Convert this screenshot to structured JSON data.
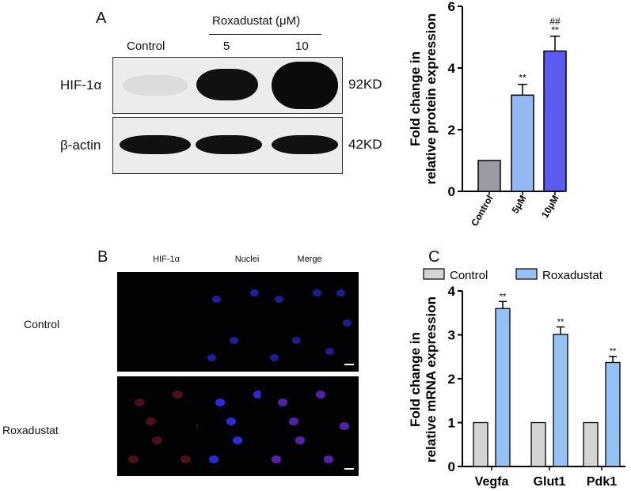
{
  "panelA": {
    "letter": "A",
    "treatment_header": "Roxadustat (μM)",
    "lanes": [
      "Control",
      "5",
      "10"
    ],
    "rows": [
      {
        "protein": "HIF-1α",
        "size": "92KD",
        "intensity": [
          0.08,
          0.92,
          1.0
        ]
      },
      {
        "protein": "β-actin",
        "size": "42KD",
        "intensity": [
          0.95,
          0.95,
          0.95
        ]
      }
    ]
  },
  "panelB": {
    "letter": "B",
    "columns": [
      "HIF-1α",
      "Nuclei",
      "Merge"
    ],
    "rows": [
      "Control",
      "Roxadustat"
    ]
  },
  "panelC": {
    "letter": "C"
  },
  "chart_data": [
    {
      "type": "bar",
      "categories": [
        "Control",
        "5μM",
        "10μM"
      ],
      "values": [
        1.0,
        3.12,
        4.55
      ],
      "errors": [
        0,
        0.35,
        0.48
      ],
      "annotations": [
        "",
        "**",
        "##\n**"
      ],
      "colors": [
        "#9b9ba6",
        "#94b8f5",
        "#5b5bf0"
      ],
      "ylabel": "Fold change in relative protein expression",
      "ylim": [
        0,
        6
      ],
      "yticks": [
        0,
        2,
        4,
        6
      ]
    },
    {
      "type": "bar",
      "categories": [
        "Vegfa",
        "Glut1",
        "Pdk1"
      ],
      "series": [
        {
          "name": "Control",
          "values": [
            1.0,
            1.0,
            1.0
          ],
          "errors": [
            0,
            0,
            0
          ],
          "color": "#d4d4d4"
        },
        {
          "name": "Roxadustat",
          "values": [
            3.6,
            3.01,
            2.37
          ],
          "errors": [
            0.16,
            0.17,
            0.14
          ],
          "color": "#94c2f5"
        }
      ],
      "annotations": [
        "**",
        "**",
        "**"
      ],
      "ylabel": "Fold change in relative mRNA expression",
      "ylim": [
        0,
        4
      ],
      "yticks": [
        0,
        1,
        2,
        3,
        4
      ],
      "legend": "top"
    }
  ]
}
